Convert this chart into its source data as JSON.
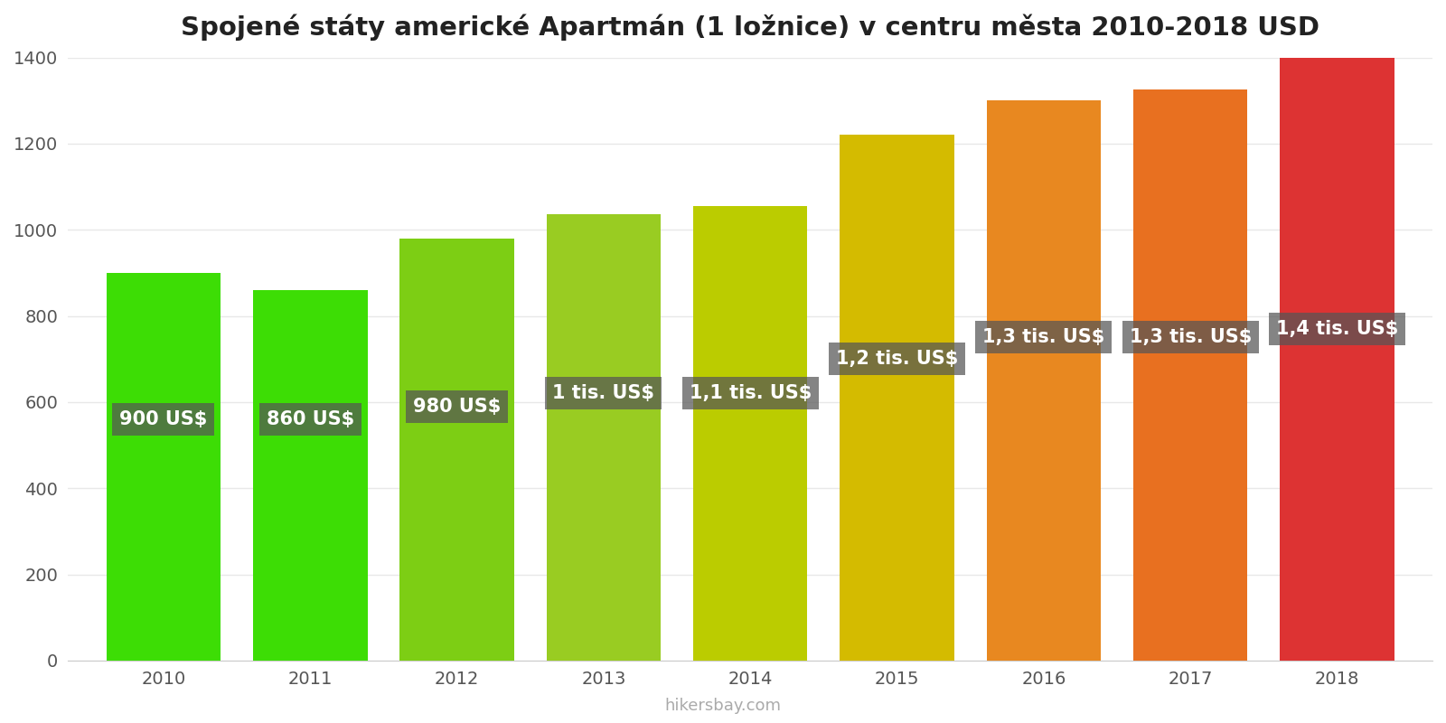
{
  "title": "Spojené státy americké Apartmán (1 ložnice) v centru města 2010-2018 USD",
  "years": [
    2010,
    2011,
    2012,
    2013,
    2014,
    2015,
    2016,
    2017,
    2018
  ],
  "values": [
    900,
    860,
    980,
    1035,
    1055,
    1220,
    1300,
    1325,
    1400
  ],
  "labels": [
    "900 US$",
    "860 US$",
    "980 US$",
    "1 tis. US$",
    "1,1 tis. US$",
    "1,2 tis. US$",
    "1,3 tis. US$",
    "1,3 tis. US$",
    "1,4 tis. US$"
  ],
  "label_y_positions": [
    560,
    560,
    590,
    620,
    620,
    700,
    750,
    750,
    770
  ],
  "bar_colors": [
    "#3ddd05",
    "#3ddd05",
    "#7dce14",
    "#99cc22",
    "#bbcc00",
    "#d4bb00",
    "#e88820",
    "#e87020",
    "#dd3333"
  ],
  "ylim": [
    0,
    1400
  ],
  "yticks": [
    0,
    200,
    400,
    600,
    800,
    1000,
    1200,
    1400
  ],
  "background_color": "#ffffff",
  "grid_color": "#e8e8e8",
  "footer": "hikersbay.com",
  "title_fontsize": 21,
  "label_fontsize": 15,
  "tick_fontsize": 14,
  "bar_width": 0.78
}
